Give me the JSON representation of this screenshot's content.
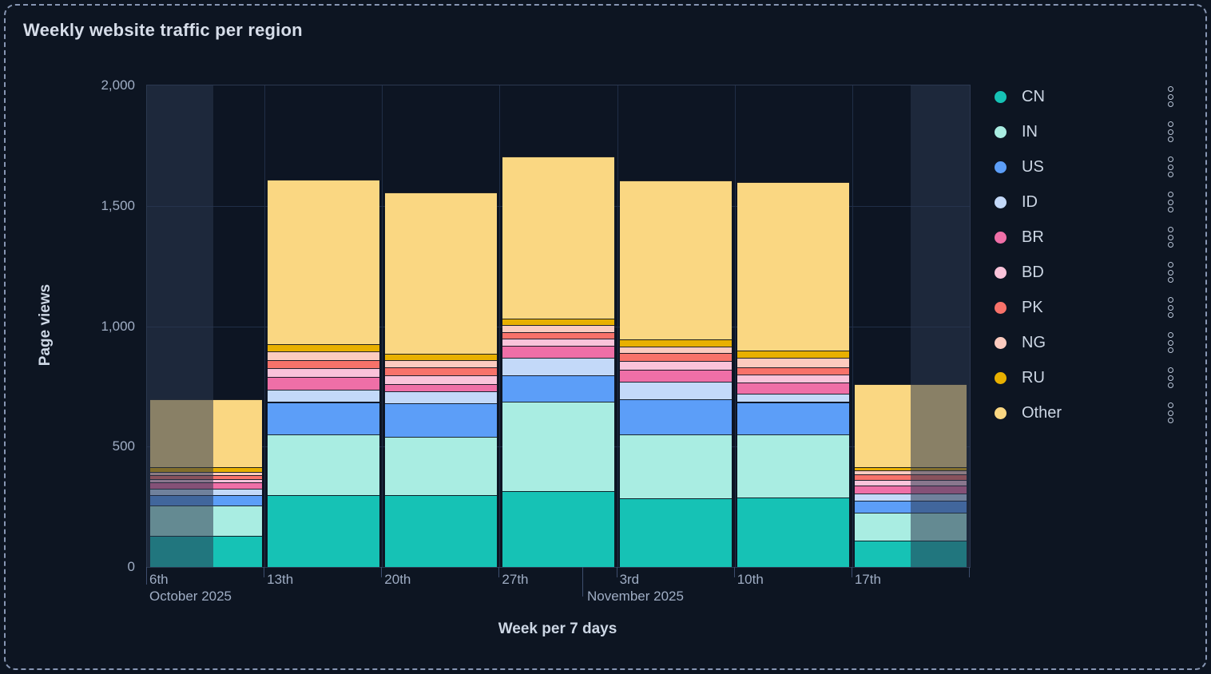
{
  "panel": {
    "title": "Weekly website traffic per region",
    "colors": {
      "background": "#0d1522",
      "border_dashed": "#8796b3",
      "plot_background": "#0d1523",
      "plot_border": "#2b3850",
      "gridline": "#202e47",
      "tick": "#3e4e6e",
      "axis_text": "#9fadc4",
      "axis_title_text": "#cdd7e5",
      "legend_text": "#ccd6e4",
      "out_of_range_overlay": "rgba(44,56,80,0.55)"
    }
  },
  "chart_data": {
    "type": "bar",
    "stacked": true,
    "title": "Weekly website traffic per region",
    "xlabel": "Week per 7 days",
    "ylabel": "Page views",
    "ylim": [
      0,
      2000
    ],
    "grid": true,
    "legend_position": "right",
    "ytick_values": [
      0,
      500,
      1000,
      1500,
      2000
    ],
    "ytick_labels": [
      "0",
      "500",
      "1,000",
      "1,500",
      "2,000"
    ],
    "categories": [
      "6th",
      "13th",
      "20th",
      "27th",
      "3rd",
      "10th",
      "17th"
    ],
    "month_labels": [
      "October 2025",
      "November 2025"
    ],
    "series": [
      {
        "name": "CN",
        "color": "#16c2b5",
        "values": [
          130,
          300,
          300,
          315,
          285,
          290,
          110
        ]
      },
      {
        "name": "IN",
        "color": "#a9ede2",
        "values": [
          125,
          250,
          240,
          370,
          265,
          260,
          115
        ]
      },
      {
        "name": "US",
        "color": "#5c9ef8",
        "values": [
          45,
          135,
          140,
          110,
          145,
          135,
          50
        ]
      },
      {
        "name": "ID",
        "color": "#c3d9f9",
        "values": [
          25,
          50,
          50,
          75,
          75,
          35,
          30
        ]
      },
      {
        "name": "BR",
        "color": "#ef6fa7",
        "values": [
          25,
          55,
          30,
          50,
          50,
          45,
          35
        ]
      },
      {
        "name": "BD",
        "color": "#fac3da",
        "values": [
          15,
          35,
          35,
          30,
          35,
          35,
          20
        ]
      },
      {
        "name": "PK",
        "color": "#f8726a",
        "values": [
          15,
          35,
          35,
          25,
          35,
          30,
          25
        ]
      },
      {
        "name": "NG",
        "color": "#fccbbf",
        "values": [
          15,
          35,
          30,
          30,
          25,
          40,
          15
        ]
      },
      {
        "name": "RU",
        "color": "#e8b000",
        "values": [
          20,
          30,
          25,
          25,
          30,
          30,
          15
        ]
      },
      {
        "name": "Other",
        "color": "#fad782",
        "values": [
          280,
          685,
          670,
          675,
          660,
          700,
          345
        ]
      }
    ],
    "totals_per_week": [
      695,
      1610,
      1555,
      1705,
      1605,
      1600,
      760
    ]
  }
}
